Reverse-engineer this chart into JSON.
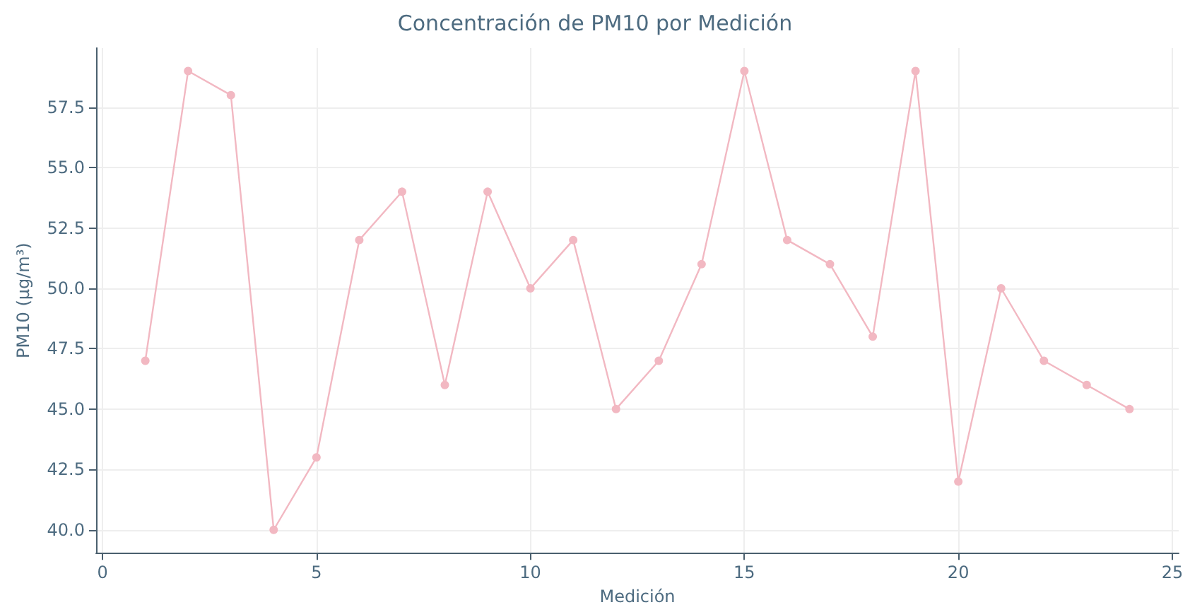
{
  "chart_data": {
    "type": "line",
    "title": "Concentración de PM10 por Medición",
    "xlabel": "Medición",
    "ylabel": "PM10 (µg/m³)",
    "x": [
      1,
      2,
      3,
      4,
      5,
      6,
      7,
      8,
      9,
      10,
      11,
      12,
      13,
      14,
      15,
      16,
      17,
      18,
      19,
      20,
      21,
      22,
      23,
      24
    ],
    "series": [
      {
        "color": "#f2b8c2",
        "values": [
          47,
          59,
          58,
          40,
          43,
          52,
          54,
          46,
          54,
          50,
          52,
          45,
          47,
          51,
          59,
          52,
          51,
          48,
          59,
          42,
          50,
          47,
          46,
          45
        ]
      }
    ],
    "xlim": [
      -0.15,
      25.15
    ],
    "xticks": [
      0,
      5,
      10,
      15,
      20,
      25
    ],
    "ylim": [
      39.05,
      59.95
    ],
    "yticks": [
      {
        "value": 40,
        "label": "40.0"
      },
      {
        "value": 42.5,
        "label": "42.5"
      },
      {
        "value": 45,
        "label": "45.0"
      },
      {
        "value": 47.5,
        "label": "47.5"
      },
      {
        "value": 50,
        "label": "50.0"
      },
      {
        "value": 52.5,
        "label": "52.5"
      },
      {
        "value": 55,
        "label": "55.0"
      },
      {
        "value": 57.5,
        "label": "57.5"
      }
    ],
    "grid": true,
    "marker": "circle",
    "line_style": "solid"
  }
}
